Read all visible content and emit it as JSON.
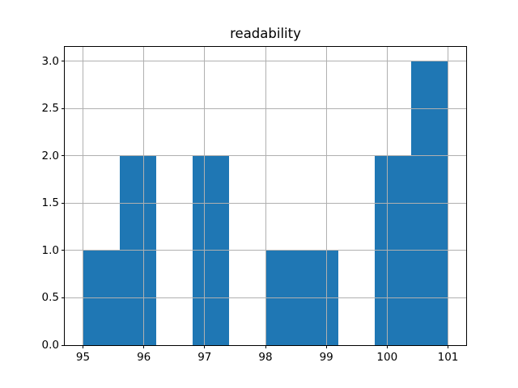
{
  "figure": {
    "background": "#ffffff"
  },
  "chart_data": {
    "type": "bar",
    "subtype": "histogram",
    "title": "readability",
    "xlabel": "",
    "ylabel": "",
    "bin_edges": [
      95.0,
      95.6,
      96.2,
      96.8,
      97.4,
      98.0,
      98.6,
      99.2,
      99.8,
      100.4,
      101.0
    ],
    "counts": [
      1,
      2,
      0,
      2,
      0,
      1,
      1,
      0,
      2,
      3
    ],
    "x_ticks": [
      95,
      96,
      97,
      98,
      99,
      100,
      101
    ],
    "x_tick_labels": [
      "95",
      "96",
      "97",
      "98",
      "99",
      "100",
      "101"
    ],
    "y_ticks": [
      0.0,
      0.5,
      1.0,
      1.5,
      2.0,
      2.5,
      3.0
    ],
    "y_tick_labels": [
      "0.0",
      "0.5",
      "1.0",
      "1.5",
      "2.0",
      "2.5",
      "3.0"
    ],
    "xlim": [
      94.7,
      101.3
    ],
    "ylim": [
      0.0,
      3.15
    ],
    "grid": true,
    "grid_above_bars": true,
    "legend": null,
    "colors": {
      "bar": "#1f77b4",
      "grid": "#b0b0b0",
      "spine": "#000000",
      "text": "#000000"
    }
  }
}
